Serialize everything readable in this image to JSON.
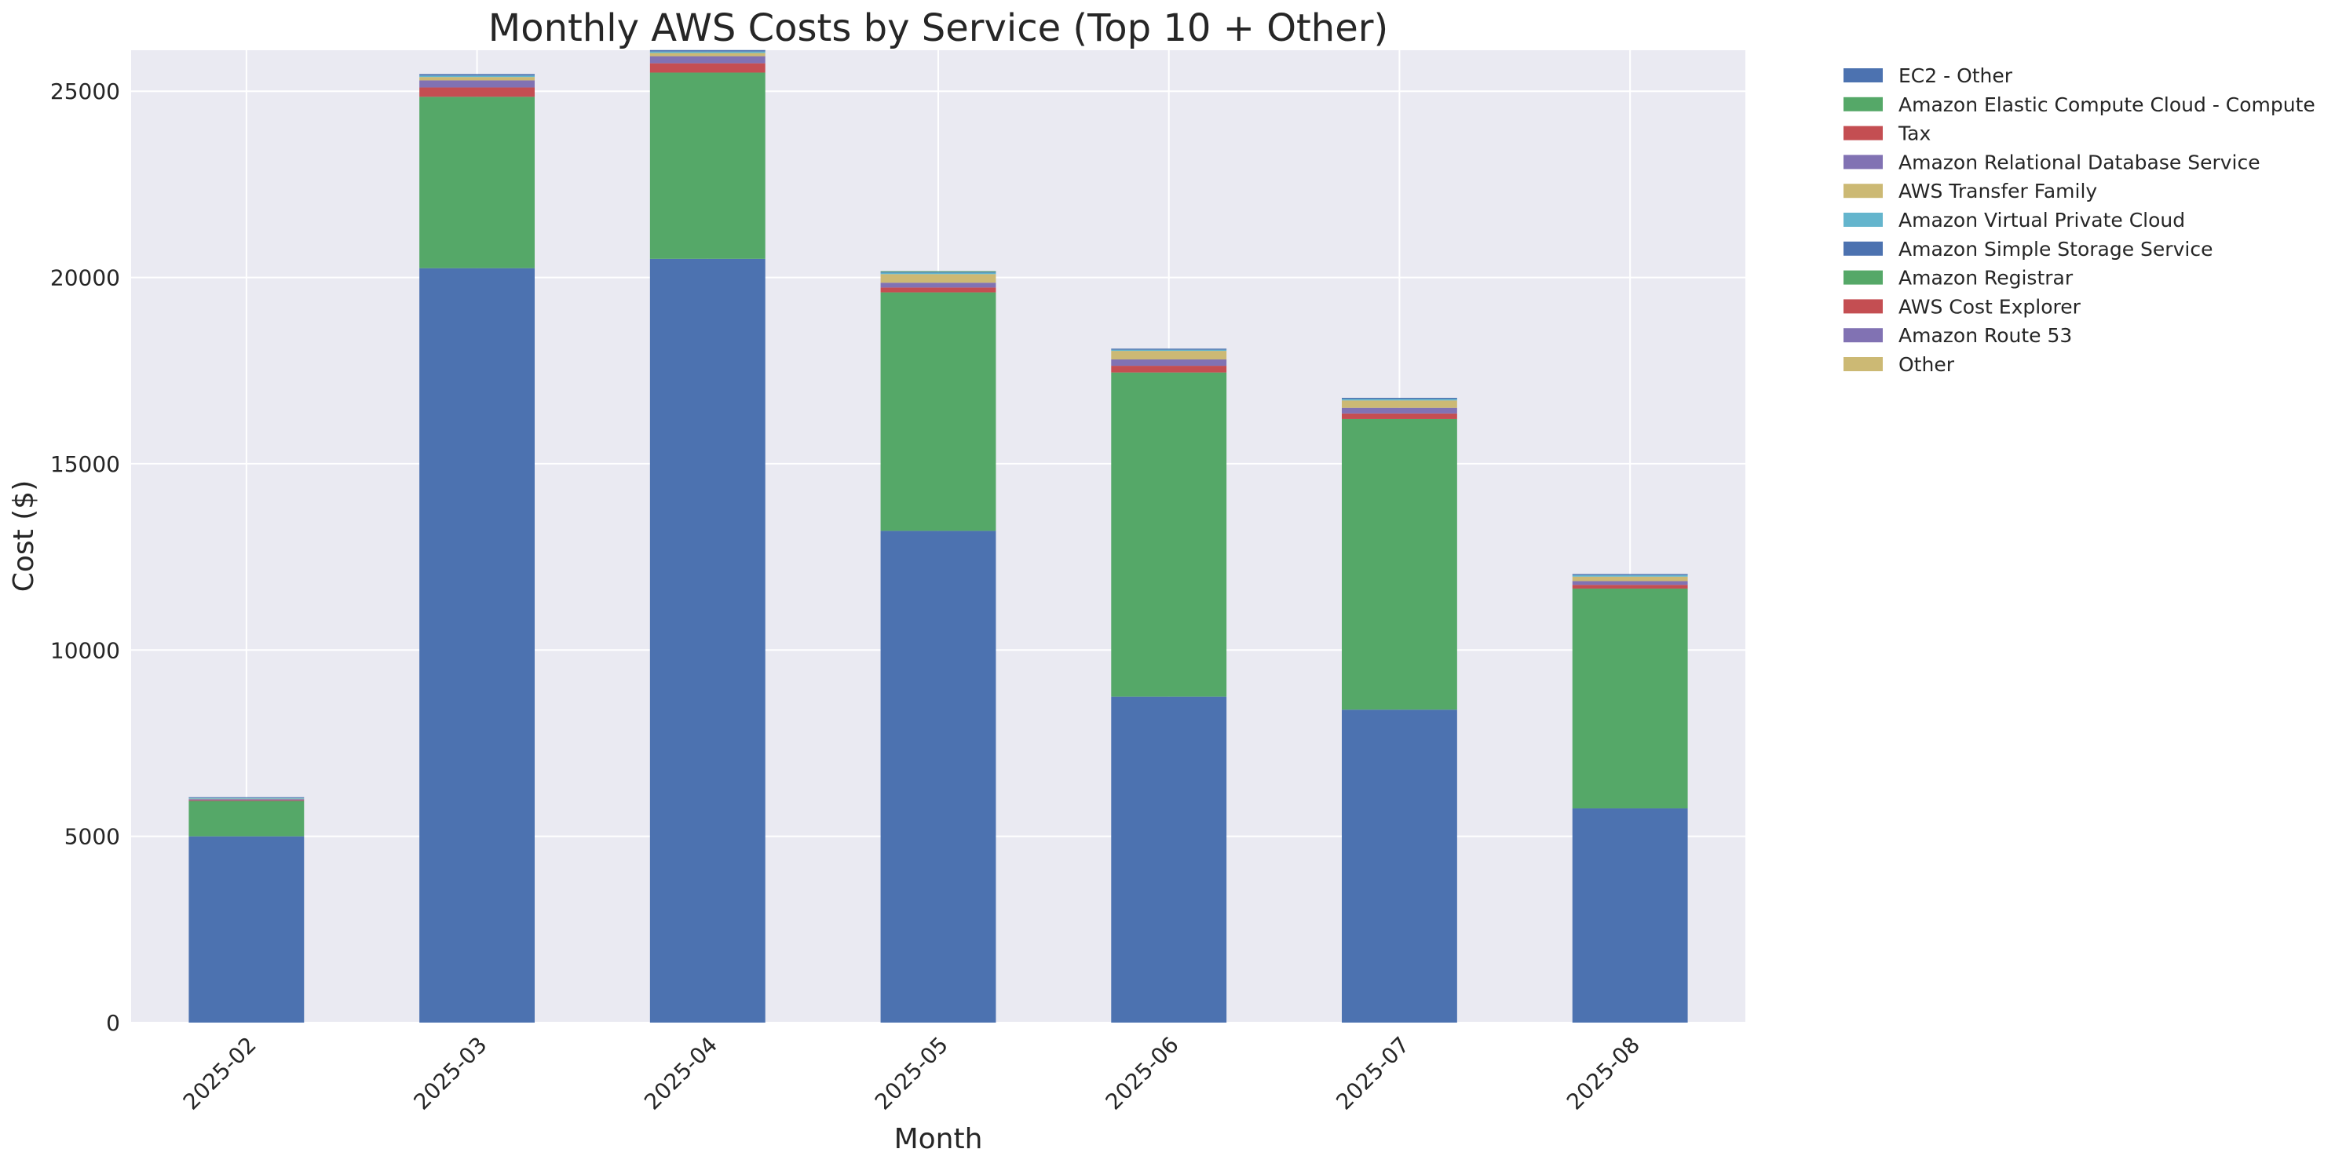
{
  "chart_data": {
    "type": "bar",
    "stacked": true,
    "title": "Monthly AWS Costs by Service (Top 10 + Other)",
    "xlabel": "Month",
    "ylabel": "Cost ($)",
    "ylim": [
      0,
      26100
    ],
    "yticks": [
      0,
      5000,
      10000,
      15000,
      20000,
      25000
    ],
    "grid": true,
    "legend_placement": "outside-top-right",
    "categories": [
      "2025-02",
      "2025-03",
      "2025-04",
      "2025-05",
      "2025-06",
      "2025-07",
      "2025-08"
    ],
    "series": [
      {
        "name": "EC2 - Other",
        "color": "#4c72b0",
        "values": [
          5000,
          20250,
          20500,
          13200,
          8750,
          8400,
          5750
        ]
      },
      {
        "name": "Amazon Elastic Compute Cloud - Compute",
        "color": "#55a868",
        "values": [
          950,
          4600,
          5000,
          6400,
          8700,
          7800,
          5900
        ]
      },
      {
        "name": "Tax",
        "color": "#c44e52",
        "values": [
          20,
          250,
          250,
          130,
          180,
          150,
          100
        ]
      },
      {
        "name": "Amazon Relational Database Service",
        "color": "#8172b3",
        "values": [
          30,
          190,
          190,
          130,
          170,
          150,
          100
        ]
      },
      {
        "name": "AWS Transfer Family",
        "color": "#ccb974",
        "values": [
          10,
          90,
          85,
          230,
          230,
          200,
          120
        ]
      },
      {
        "name": "Amazon Virtual Private Cloud",
        "color": "#64b5cd",
        "values": [
          20,
          40,
          40,
          40,
          30,
          40,
          40
        ]
      },
      {
        "name": "Amazon Simple Storage Service",
        "color": "#4c72b0",
        "values": [
          20,
          40,
          40,
          20,
          30,
          30,
          30
        ]
      },
      {
        "name": "Amazon Registrar",
        "color": "#55a868",
        "values": [
          0,
          0,
          0,
          20,
          0,
          0,
          0
        ]
      },
      {
        "name": "AWS Cost Explorer",
        "color": "#c44e52",
        "values": [
          0,
          0,
          0,
          0,
          0,
          0,
          0
        ]
      },
      {
        "name": "Amazon Route 53",
        "color": "#8172b3",
        "values": [
          0,
          0,
          0,
          0,
          0,
          0,
          0
        ]
      },
      {
        "name": "Other",
        "color": "#ccb974",
        "values": [
          0,
          0,
          0,
          0,
          0,
          0,
          0
        ]
      }
    ]
  }
}
